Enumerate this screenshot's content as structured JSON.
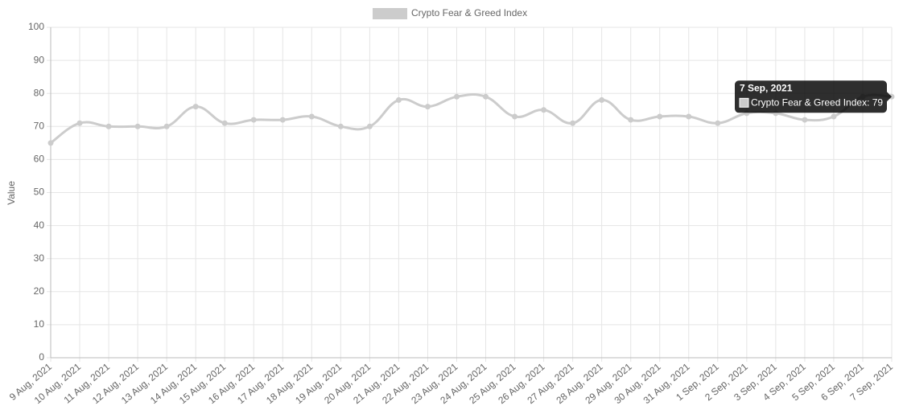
{
  "chart_data": {
    "type": "line",
    "legend_position": "top",
    "y_label": "Value",
    "categories": [
      "9 Aug, 2021",
      "10 Aug, 2021",
      "11 Aug, 2021",
      "12 Aug, 2021",
      "13 Aug, 2021",
      "14 Aug, 2021",
      "15 Aug, 2021",
      "16 Aug, 2021",
      "17 Aug, 2021",
      "18 Aug, 2021",
      "19 Aug, 2021",
      "20 Aug, 2021",
      "21 Aug, 2021",
      "22 Aug, 2021",
      "23 Aug, 2021",
      "24 Aug, 2021",
      "25 Aug, 2021",
      "26 Aug, 2021",
      "27 Aug, 2021",
      "28 Aug, 2021",
      "29 Aug, 2021",
      "30 Aug, 2021",
      "31 Aug, 2021",
      "1 Sep, 2021",
      "2 Sep, 2021",
      "3 Sep, 2021",
      "4 Sep, 2021",
      "5 Sep, 2021",
      "6 Sep, 2021",
      "7 Sep, 2021"
    ],
    "series": [
      {
        "name": "Crypto Fear & Greed Index",
        "color": "#cccccc",
        "values": [
          65,
          71,
          70,
          70,
          70,
          76,
          71,
          72,
          72,
          73,
          70,
          70,
          78,
          76,
          79,
          79,
          73,
          75,
          71,
          78,
          72,
          73,
          73,
          71,
          74,
          74,
          72,
          73,
          79,
          79
        ]
      }
    ],
    "ylim": [
      0,
      100
    ],
    "yticks": [
      0,
      10,
      20,
      30,
      40,
      50,
      60,
      70,
      80,
      90,
      100
    ],
    "grid": true,
    "tooltip": {
      "index": 29,
      "title": "7 Sep, 2021",
      "label": "Crypto Fear & Greed Index: 79"
    }
  }
}
